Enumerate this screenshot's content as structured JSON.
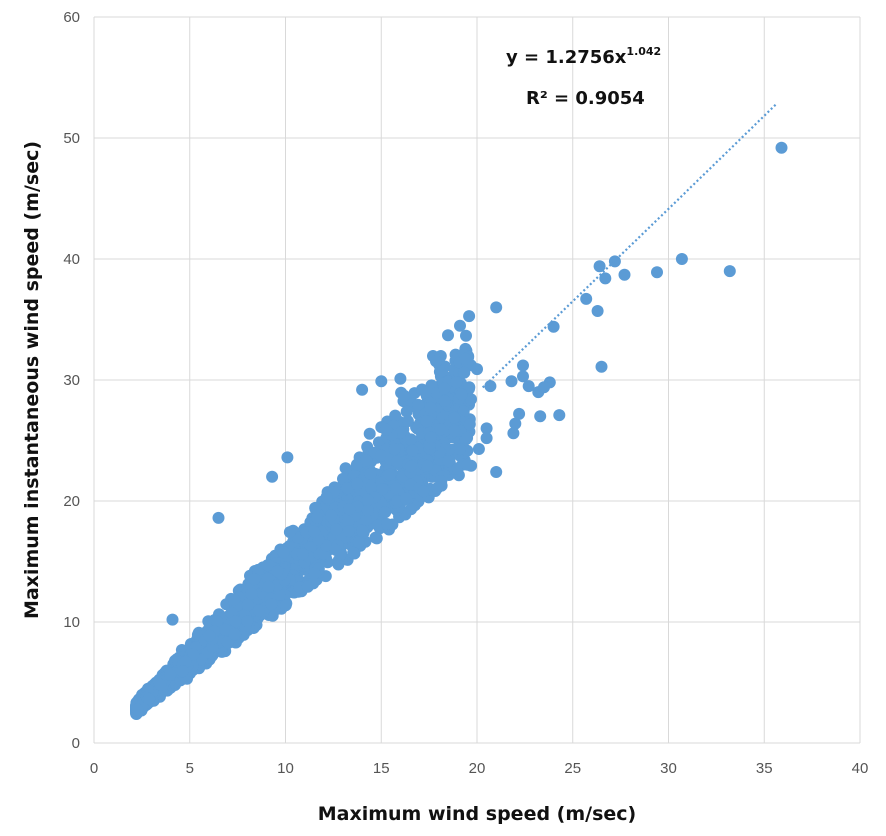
{
  "chart_data": {
    "type": "scatter",
    "xlabel": "Maximum wind speed (m/sec)",
    "ylabel": "Maximum instantaneous wind speed (m/sec)",
    "xlim": [
      0,
      40
    ],
    "ylim": [
      0,
      60
    ],
    "xticks": [
      0,
      5,
      10,
      15,
      20,
      25,
      30,
      35,
      40
    ],
    "yticks": [
      0,
      10,
      20,
      30,
      40,
      50,
      60
    ],
    "grid": true,
    "legend": "none",
    "marker_color": "#5b9bd5",
    "trendline": {
      "type": "power",
      "a": 1.2756,
      "b": 1.042,
      "x_range": [
        20.3,
        35.6
      ],
      "style": "dotted",
      "color": "#5b9bd5"
    },
    "annotations": {
      "equation_prefix": "y = 1.2756x",
      "equation_exponent": "1.042",
      "r_squared": "R² = 0.9054"
    },
    "outliers": [
      [
        35.9,
        49.2
      ],
      [
        30.7,
        40.0
      ],
      [
        33.2,
        39.0
      ],
      [
        29.4,
        38.9
      ],
      [
        27.7,
        38.7
      ],
      [
        27.2,
        39.8
      ],
      [
        26.4,
        39.4
      ],
      [
        26.7,
        38.4
      ],
      [
        25.7,
        36.7
      ],
      [
        26.3,
        35.7
      ],
      [
        24.0,
        34.4
      ],
      [
        21.0,
        36.0
      ],
      [
        26.5,
        31.1
      ],
      [
        24.3,
        27.1
      ],
      [
        23.3,
        27.0
      ],
      [
        22.0,
        26.4
      ],
      [
        21.9,
        25.6
      ],
      [
        21.0,
        22.4
      ],
      [
        22.4,
        30.3
      ],
      [
        22.4,
        31.2
      ],
      [
        23.8,
        29.8
      ],
      [
        23.2,
        29.0
      ],
      [
        22.7,
        29.5
      ],
      [
        21.8,
        29.9
      ],
      [
        20.7,
        29.5
      ],
      [
        22.2,
        27.2
      ],
      [
        23.5,
        29.4
      ],
      [
        20.0,
        30.9
      ],
      [
        16.0,
        30.1
      ],
      [
        15.0,
        29.9
      ],
      [
        14.0,
        29.2
      ],
      [
        19.6,
        29.4
      ],
      [
        18.3,
        29.3
      ],
      [
        17.3,
        29.0
      ],
      [
        16.2,
        28.7
      ],
      [
        6.5,
        18.6
      ],
      [
        9.3,
        22.0
      ],
      [
        10.1,
        23.6
      ],
      [
        20.5,
        26.0
      ],
      [
        19.0,
        22.7
      ],
      [
        18.5,
        23.3
      ],
      [
        20.1,
        24.3
      ],
      [
        19.5,
        23.0
      ],
      [
        17.4,
        22.9
      ],
      [
        20.5,
        25.2
      ],
      [
        17.2,
        20.8
      ],
      [
        15.3,
        18.1
      ],
      [
        16.3,
        20.2
      ],
      [
        4.1,
        10.2
      ],
      [
        19.2,
        28.8
      ]
    ]
  }
}
